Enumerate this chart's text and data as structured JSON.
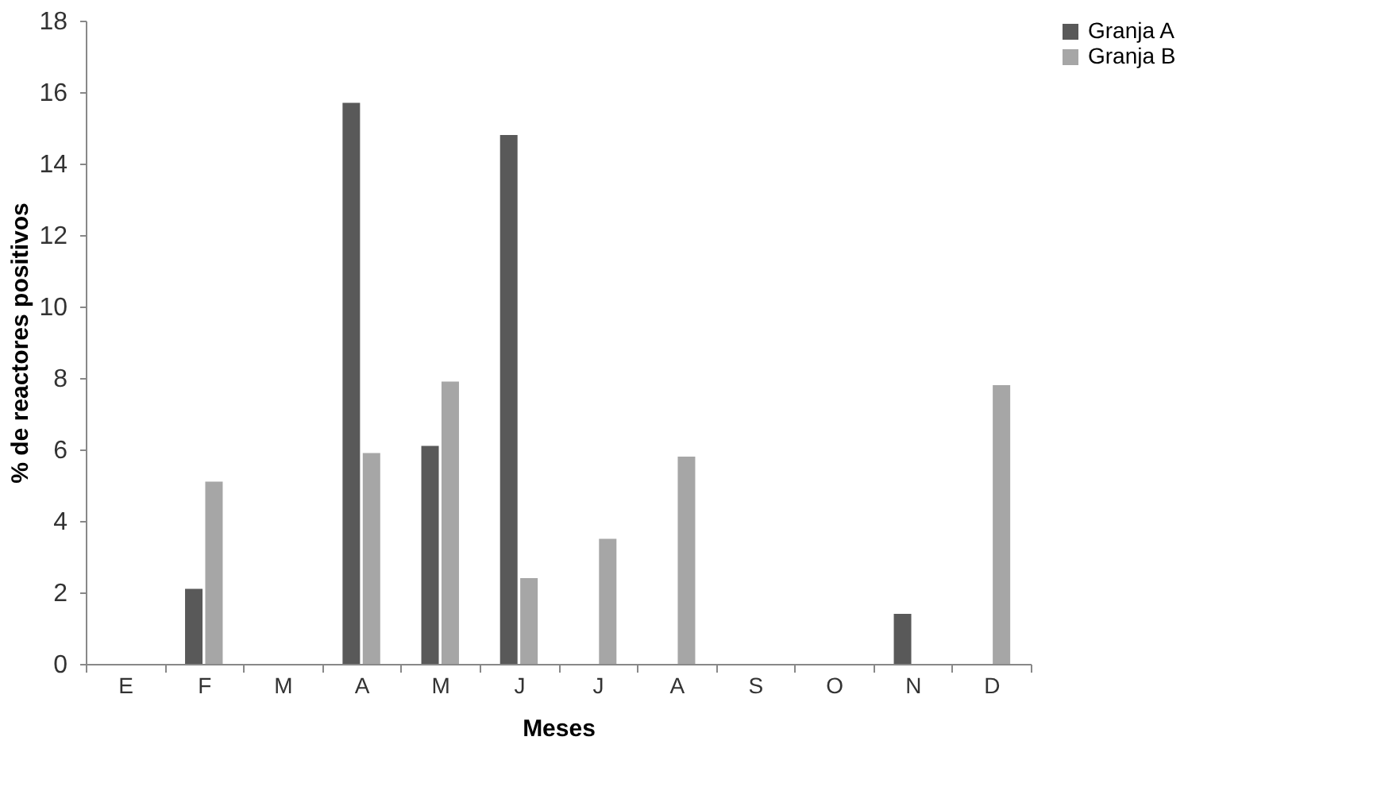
{
  "chart_data": {
    "type": "bar",
    "xlabel": "Meses",
    "ylabel": "% de reactores positivos",
    "categories": [
      "E",
      "F",
      "M",
      "A",
      "M",
      "J",
      "J",
      "A",
      "S",
      "O",
      "N",
      "D"
    ],
    "series": [
      {
        "name": "Granja A",
        "color": "#595959",
        "values": [
          0,
          2.1,
          0,
          15.7,
          6.1,
          14.8,
          0,
          0,
          0,
          0,
          1.4,
          0
        ]
      },
      {
        "name": "Granja B",
        "color": "#a6a6a6",
        "values": [
          0,
          5.1,
          0,
          5.9,
          7.9,
          2.4,
          3.5,
          5.8,
          0,
          0,
          0,
          7.8
        ]
      }
    ],
    "ylim": [
      0,
      18
    ],
    "yticks": [
      0,
      2,
      4,
      6,
      8,
      10,
      12,
      14,
      16,
      18
    ],
    "grid": false,
    "legend": "right"
  }
}
